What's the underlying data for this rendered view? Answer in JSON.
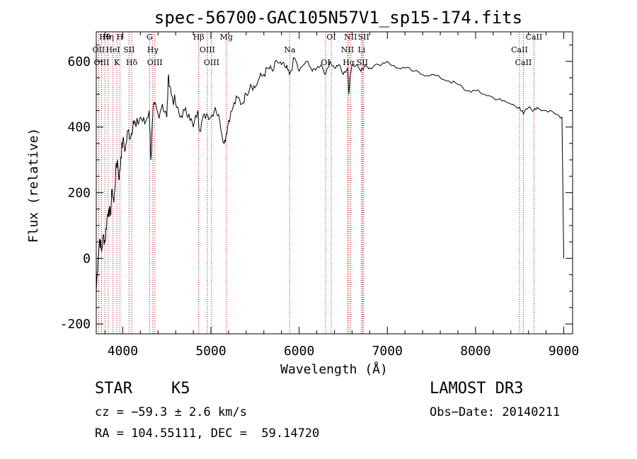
{
  "chart_data": {
    "type": "line",
    "title": "spec-56700-GAC105N57V1_sp15-174.fits",
    "xlabel": "Wavelength (Å)",
    "ylabel": "Flux (relative)",
    "xlim": [
      3700,
      9100
    ],
    "ylim": [
      -230,
      690
    ],
    "xticks": [
      4000,
      5000,
      6000,
      7000,
      8000,
      9000
    ],
    "yticks": [
      -200,
      0,
      200,
      400,
      600
    ],
    "grid": false,
    "series": [
      {
        "x": [
          3700,
          3720,
          3740,
          3760,
          3780,
          3800,
          3820,
          3840,
          3860,
          3880,
          3900,
          3920,
          3940,
          3960,
          3980,
          4000,
          4030,
          4060,
          4090,
          4120,
          4150,
          4200,
          4250,
          4300,
          4320,
          4340,
          4360,
          4400,
          4450,
          4500,
          4520,
          4550,
          4600,
          4650,
          4700,
          4750,
          4800,
          4850,
          4870,
          4900,
          4950,
          5000,
          5050,
          5100,
          5150,
          5175,
          5200,
          5250,
          5300,
          5350,
          5400,
          5450,
          5500,
          5550,
          5600,
          5650,
          5700,
          5750,
          5800,
          5850,
          5890,
          5950,
          6000,
          6050,
          6100,
          6150,
          6200,
          6250,
          6300,
          6350,
          6400,
          6450,
          6500,
          6550,
          6563,
          6580,
          6600,
          6650,
          6700,
          6750,
          6800,
          6900,
          7000,
          7100,
          7200,
          7300,
          7400,
          7500,
          7600,
          7700,
          7800,
          7900,
          8000,
          8100,
          8200,
          8300,
          8400,
          8500,
          8542,
          8600,
          8662,
          8700,
          8800,
          8900,
          8980,
          9000
        ],
        "y": [
          -100,
          0,
          60,
          20,
          70,
          50,
          120,
          150,
          130,
          210,
          170,
          260,
          300,
          240,
          310,
          360,
          330,
          390,
          370,
          420,
          400,
          430,
          410,
          450,
          300,
          430,
          470,
          440,
          470,
          430,
          560,
          500,
          470,
          430,
          450,
          440,
          400,
          450,
          390,
          420,
          440,
          430,
          460,
          420,
          350,
          380,
          420,
          460,
          490,
          470,
          500,
          530,
          520,
          550,
          560,
          580,
          570,
          600,
          590,
          580,
          560,
          610,
          570,
          590,
          600,
          570,
          580,
          590,
          560,
          600,
          580,
          590,
          560,
          580,
          500,
          560,
          590,
          590,
          570,
          590,
          580,
          590,
          600,
          580,
          580,
          570,
          560,
          560,
          550,
          540,
          530,
          510,
          510,
          500,
          490,
          480,
          470,
          460,
          440,
          460,
          450,
          460,
          450,
          440,
          430,
          0
        ]
      }
    ],
    "lines": [
      {
        "name": "Hθ",
        "x": 3798
      },
      {
        "name": "OII",
        "x": 3727
      },
      {
        "name": "OIII",
        "x": 3760
      },
      {
        "name": "Hη",
        "x": 3835
      },
      {
        "name": "HeI",
        "x": 3889
      },
      {
        "name": "K",
        "x": 3934
      },
      {
        "name": "H",
        "x": 3968
      },
      {
        "name": "SII",
        "x": 4072
      },
      {
        "name": "Hδ",
        "x": 4102
      },
      {
        "name": "G",
        "x": 4305
      },
      {
        "name": "Hγ",
        "x": 4341
      },
      {
        "name": "OIII",
        "x": 4364
      },
      {
        "name": "Hβ",
        "x": 4861
      },
      {
        "name": "OIII",
        "x": 4959
      },
      {
        "name": "OIII",
        "x": 5007
      },
      {
        "name": "Mg",
        "x": 5175
      },
      {
        "name": "Na",
        "x": 5893
      },
      {
        "name": "OI",
        "x": 6300
      },
      {
        "name": "OI",
        "x": 6364
      },
      {
        "name": "NII",
        "x": 6548
      },
      {
        "name": "Hα",
        "x": 6563
      },
      {
        "name": "NII",
        "x": 6583
      },
      {
        "name": "Li",
        "x": 6708
      },
      {
        "name": "SII",
        "x": 6716
      },
      {
        "name": "SII",
        "x": 6731
      },
      {
        "name": "CaII",
        "x": 8498
      },
      {
        "name": "CaII",
        "x": 8542
      },
      {
        "name": "CaII",
        "x": 8662
      }
    ]
  },
  "info": {
    "class_label": "STAR",
    "subclass_label": "K5",
    "survey": "LAMOST DR3",
    "cz": "cz = −59.3 ± 2.6 km/s",
    "obs_date": "Obs−Date: 20140211",
    "radec": "RA = 104.55111, DEC =  59.14720"
  }
}
